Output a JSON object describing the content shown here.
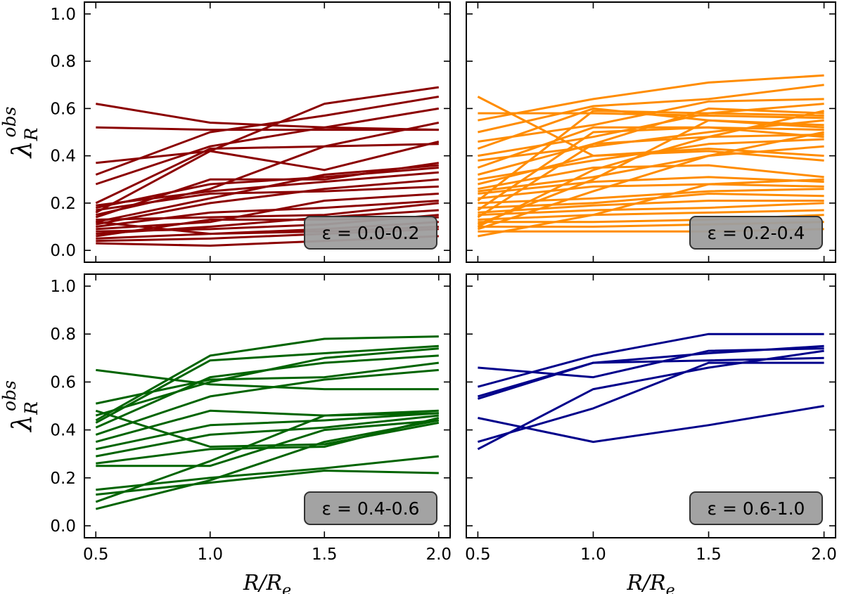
{
  "chart_data": [
    {
      "type": "line",
      "panel": "top-left",
      "color": "#8b0000",
      "label": "ε = 0.0-0.2",
      "x": [
        0.5,
        1.0,
        1.5,
        2.0
      ],
      "xlim": [
        0.45,
        2.05
      ],
      "ylim": [
        -0.05,
        1.05
      ],
      "xticks": [
        "0.5",
        "1.0",
        "1.5",
        "2.0"
      ],
      "yticks": [
        "0.0",
        "0.2",
        "0.4",
        "0.6",
        "0.8",
        "1.0"
      ],
      "ylabel": "λ",
      "ylabel_sub": "R",
      "ylabel_sup": "obs",
      "xlabel": "",
      "series": [
        [
          0.62,
          0.54,
          0.52,
          0.51
        ],
        [
          0.52,
          0.51,
          0.51,
          0.51
        ],
        [
          0.37,
          0.42,
          0.62,
          0.69
        ],
        [
          0.32,
          0.5,
          0.57,
          0.65
        ],
        [
          0.28,
          0.44,
          0.52,
          0.6
        ],
        [
          0.2,
          0.43,
          0.44,
          0.45
        ],
        [
          0.15,
          0.26,
          0.44,
          0.54
        ],
        [
          0.16,
          0.42,
          0.34,
          0.46
        ],
        [
          0.14,
          0.3,
          0.3,
          0.37
        ],
        [
          0.12,
          0.22,
          0.32,
          0.36
        ],
        [
          0.19,
          0.25,
          0.29,
          0.33
        ],
        [
          0.11,
          0.2,
          0.26,
          0.3
        ],
        [
          0.17,
          0.24,
          0.25,
          0.27
        ],
        [
          0.09,
          0.12,
          0.21,
          0.24
        ],
        [
          0.1,
          0.16,
          0.18,
          0.21
        ],
        [
          0.13,
          0.14,
          0.15,
          0.2
        ],
        [
          0.07,
          0.1,
          0.14,
          0.17
        ],
        [
          0.08,
          0.09,
          0.11,
          0.15
        ],
        [
          0.05,
          0.07,
          0.09,
          0.12
        ],
        [
          0.04,
          0.05,
          0.07,
          0.09
        ],
        [
          0.03,
          0.02,
          0.04,
          0.06
        ],
        [
          0.06,
          0.13,
          0.13,
          0.14
        ],
        [
          0.12,
          0.07,
          0.08,
          0.1
        ],
        [
          0.18,
          0.28,
          0.31,
          0.35
        ]
      ]
    },
    {
      "type": "line",
      "panel": "top-right",
      "color": "#ff8c00",
      "label": "ε = 0.2-0.4",
      "x": [
        0.5,
        1.0,
        1.5,
        2.0
      ],
      "xlim": [
        0.45,
        2.05
      ],
      "ylim": [
        -0.05,
        1.05
      ],
      "xticks": [
        "0.5",
        "1.0",
        "1.5",
        "2.0"
      ],
      "yticks": [
        "0.0",
        "0.2",
        "0.4",
        "0.6",
        "0.8",
        "1.0"
      ],
      "ylabel": "",
      "xlabel": "",
      "series": [
        [
          0.65,
          0.4,
          0.43,
          0.4
        ],
        [
          0.58,
          0.58,
          0.57,
          0.56
        ],
        [
          0.55,
          0.64,
          0.71,
          0.74
        ],
        [
          0.5,
          0.61,
          0.64,
          0.7
        ],
        [
          0.46,
          0.53,
          0.63,
          0.64
        ],
        [
          0.43,
          0.6,
          0.55,
          0.53
        ],
        [
          0.4,
          0.48,
          0.58,
          0.62
        ],
        [
          0.38,
          0.44,
          0.5,
          0.55
        ],
        [
          0.35,
          0.52,
          0.52,
          0.51
        ],
        [
          0.32,
          0.45,
          0.48,
          0.49
        ],
        [
          0.3,
          0.38,
          0.45,
          0.47
        ],
        [
          0.28,
          0.4,
          0.42,
          0.38
        ],
        [
          0.26,
          0.35,
          0.36,
          0.31
        ],
        [
          0.24,
          0.29,
          0.31,
          0.29
        ],
        [
          0.22,
          0.27,
          0.28,
          0.27
        ],
        [
          0.2,
          0.22,
          0.25,
          0.26
        ],
        [
          0.18,
          0.2,
          0.24,
          0.23
        ],
        [
          0.16,
          0.19,
          0.21,
          0.21
        ],
        [
          0.15,
          0.17,
          0.18,
          0.2
        ],
        [
          0.13,
          0.15,
          0.16,
          0.17
        ],
        [
          0.12,
          0.12,
          0.13,
          0.15
        ],
        [
          0.1,
          0.1,
          0.11,
          0.12
        ],
        [
          0.08,
          0.08,
          0.08,
          0.09
        ],
        [
          0.06,
          0.15,
          0.28,
          0.3
        ],
        [
          0.09,
          0.25,
          0.4,
          0.5
        ],
        [
          0.11,
          0.3,
          0.55,
          0.52
        ],
        [
          0.14,
          0.45,
          0.6,
          0.58
        ],
        [
          0.17,
          0.5,
          0.52,
          0.48
        ],
        [
          0.1,
          0.34,
          0.48,
          0.59
        ],
        [
          0.21,
          0.59,
          0.58,
          0.57
        ],
        [
          0.25,
          0.31,
          0.4,
          0.44
        ]
      ]
    },
    {
      "type": "line",
      "panel": "bottom-left",
      "color": "#006400",
      "label": "ε = 0.4-0.6",
      "x": [
        0.5,
        1.0,
        1.5,
        2.0
      ],
      "xlim": [
        0.45,
        2.05
      ],
      "ylim": [
        -0.05,
        1.05
      ],
      "xticks": [
        "0.5",
        "1.0",
        "1.5",
        "2.0"
      ],
      "yticks": [
        "0.0",
        "0.2",
        "0.4",
        "0.6",
        "0.8",
        "1.0"
      ],
      "ylabel": "λ",
      "ylabel_sub": "R",
      "ylabel_sup": "obs",
      "xlabel": "R/R",
      "xlabel_sub": "e",
      "series": [
        [
          0.65,
          0.59,
          0.57,
          0.57
        ],
        [
          0.51,
          0.61,
          0.62,
          0.68
        ],
        [
          0.48,
          0.33,
          0.34,
          0.43
        ],
        [
          0.46,
          0.6,
          0.7,
          0.74
        ],
        [
          0.44,
          0.71,
          0.78,
          0.79
        ],
        [
          0.43,
          0.69,
          0.72,
          0.75
        ],
        [
          0.41,
          0.62,
          0.68,
          0.71
        ],
        [
          0.38,
          0.54,
          0.61,
          0.65
        ],
        [
          0.35,
          0.48,
          0.46,
          0.48
        ],
        [
          0.32,
          0.42,
          0.44,
          0.47
        ],
        [
          0.29,
          0.38,
          0.41,
          0.46
        ],
        [
          0.26,
          0.32,
          0.33,
          0.45
        ],
        [
          0.25,
          0.25,
          0.4,
          0.44
        ],
        [
          0.15,
          0.2,
          0.24,
          0.29
        ],
        [
          0.13,
          0.18,
          0.23,
          0.22
        ],
        [
          0.1,
          0.27,
          0.46,
          0.47
        ],
        [
          0.07,
          0.19,
          0.35,
          0.44
        ]
      ]
    },
    {
      "type": "line",
      "panel": "bottom-right",
      "color": "#00008b",
      "label": "ε = 0.6-1.0",
      "x": [
        0.5,
        1.0,
        1.5,
        2.0
      ],
      "xlim": [
        0.45,
        2.05
      ],
      "ylim": [
        -0.05,
        1.05
      ],
      "xticks": [
        "0.5",
        "1.0",
        "1.5",
        "2.0"
      ],
      "yticks": [
        "0.0",
        "0.2",
        "0.4",
        "0.6",
        "0.8",
        "1.0"
      ],
      "ylabel": "",
      "xlabel": "R/R",
      "xlabel_sub": "e",
      "series": [
        [
          0.66,
          0.62,
          0.73,
          0.74
        ],
        [
          0.58,
          0.71,
          0.8,
          0.8
        ],
        [
          0.54,
          0.68,
          0.72,
          0.75
        ],
        [
          0.53,
          0.68,
          0.69,
          0.7
        ],
        [
          0.45,
          0.35,
          0.42,
          0.5
        ],
        [
          0.35,
          0.49,
          0.68,
          0.68
        ],
        [
          0.32,
          0.57,
          0.66,
          0.73
        ]
      ]
    }
  ]
}
